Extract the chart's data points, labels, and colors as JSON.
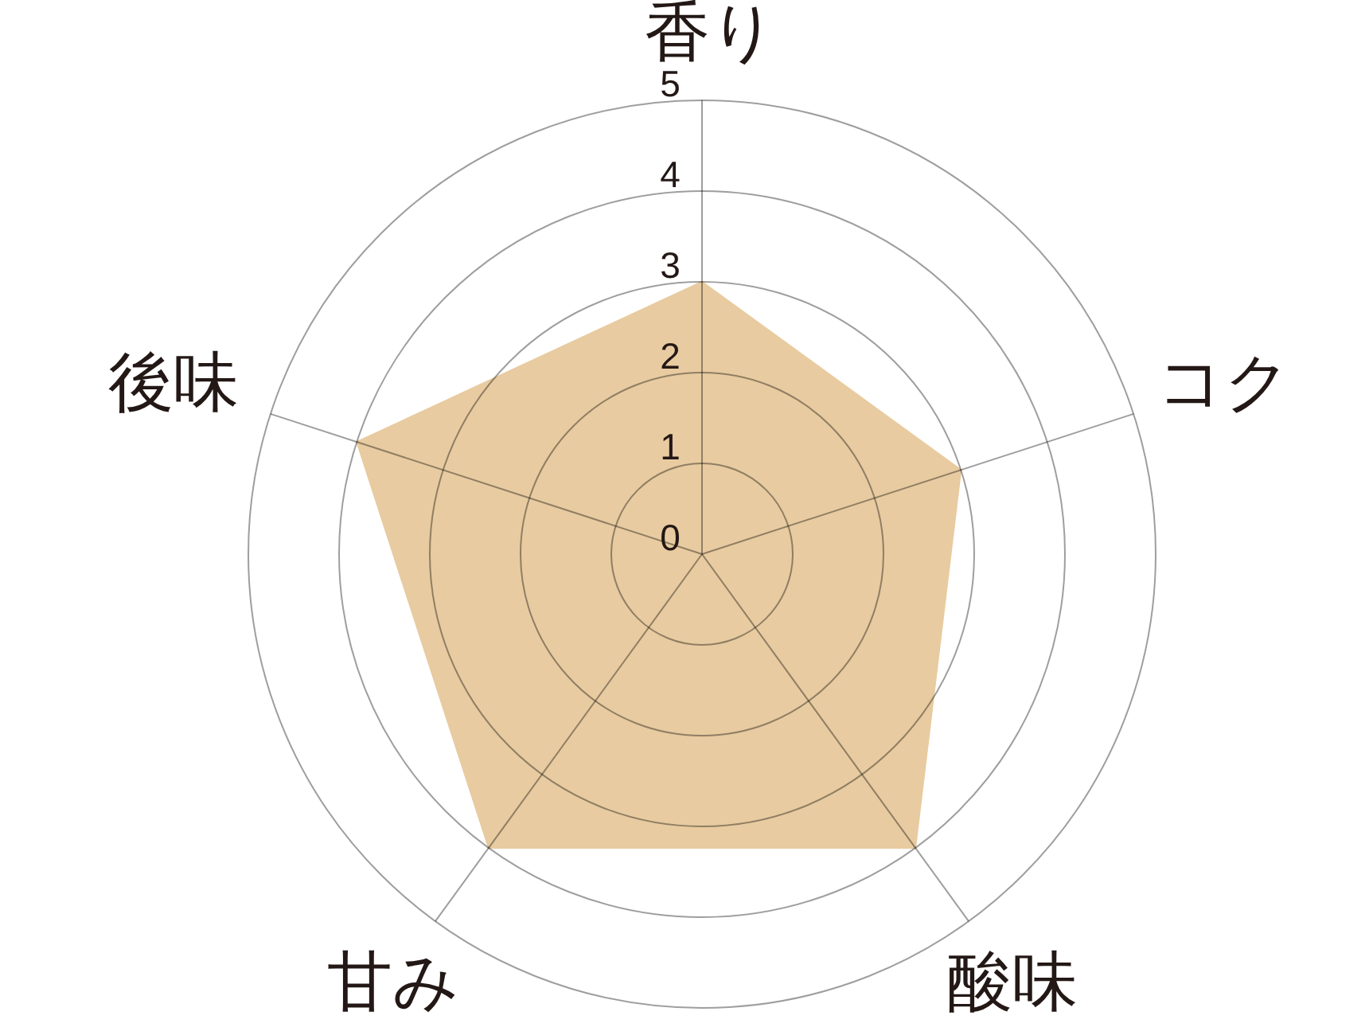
{
  "chart_data": {
    "type": "radar",
    "categories": [
      "香り",
      "コク",
      "酸味",
      "甘み",
      "後味"
    ],
    "series": [
      {
        "color": "#e8cba0",
        "values": [
          3,
          3,
          4,
          4,
          4
        ]
      }
    ],
    "ylim": [
      0,
      5
    ],
    "yticks": [
      0,
      1,
      2,
      3,
      4,
      5
    ],
    "grid": true,
    "marker": "none"
  }
}
